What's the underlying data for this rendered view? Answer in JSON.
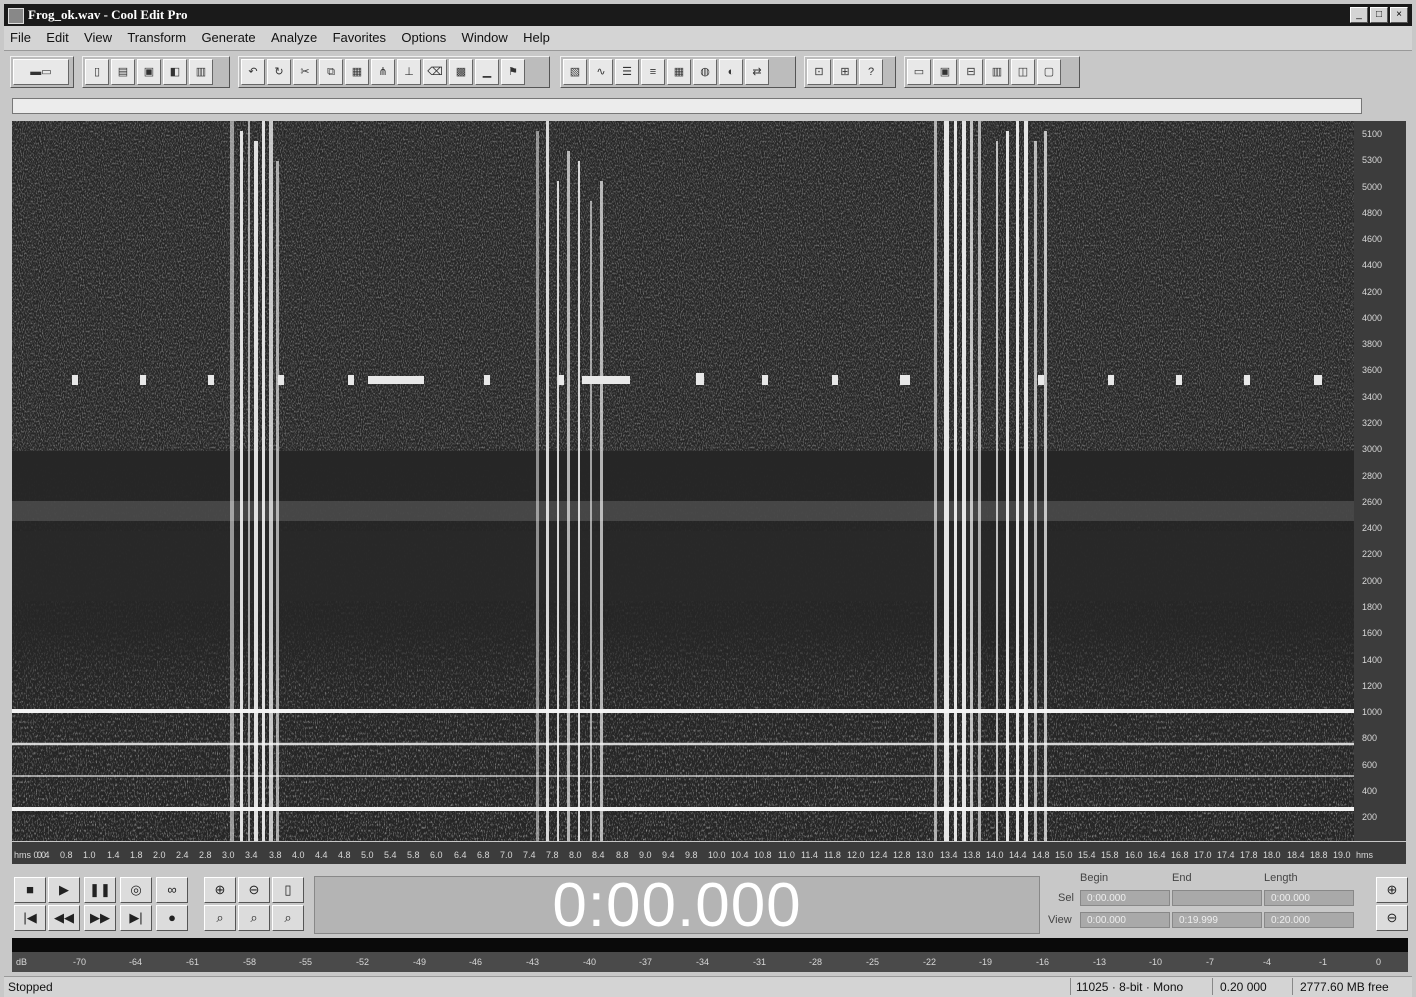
{
  "title": "Frog_ok.wav - Cool Edit Pro",
  "menu": [
    "File",
    "Edit",
    "View",
    "Transform",
    "Generate",
    "Analyze",
    "Favorites",
    "Options",
    "Window",
    "Help"
  ],
  "freq_labels": [
    "5100",
    "5300",
    "5000",
    "4800",
    "4600",
    "4400",
    "4200",
    "4000",
    "3800",
    "3600",
    "3400",
    "3200",
    "3000",
    "2800",
    "2600",
    "2400",
    "2200",
    "2000",
    "1800",
    "1600",
    "1400",
    "1200",
    "1000",
    "800",
    "600",
    "400",
    "200"
  ],
  "time_labels": [
    "hms 0.0",
    "0.4",
    "0.8",
    "1.0",
    "1.4",
    "1.8",
    "2.0",
    "2.4",
    "2.8",
    "3.0",
    "3.4",
    "3.8",
    "4.0",
    "4.4",
    "4.8",
    "5.0",
    "5.4",
    "5.8",
    "6.0",
    "6.4",
    "6.8",
    "7.0",
    "7.4",
    "7.8",
    "8.0",
    "8.4",
    "8.8",
    "9.0",
    "9.4",
    "9.8",
    "10.0",
    "10.4",
    "10.8",
    "11.0",
    "11.4",
    "11.8",
    "12.0",
    "12.4",
    "12.8",
    "13.0",
    "13.4",
    "13.8",
    "14.0",
    "14.4",
    "14.8",
    "15.0",
    "15.4",
    "15.8",
    "16.0",
    "16.4",
    "16.8",
    "17.0",
    "17.4",
    "17.8",
    "18.0",
    "18.4",
    "18.8",
    "19.0",
    "hms"
  ],
  "clock": "0:00.000",
  "selection": {
    "begin_label": "Begin",
    "end_label": "End",
    "length_label": "Length",
    "sel_label": "Sel",
    "view_label": "View",
    "sel_begin": "0:00.000",
    "sel_end": "",
    "sel_length": "0:00.000",
    "view_begin": "0:00.000",
    "view_end": "0:19.999",
    "view_length": "0:20.000"
  },
  "meter_labels": [
    "dB",
    "-70",
    "-64",
    "-61",
    "-58",
    "-55",
    "-52",
    "-49",
    "-46",
    "-43",
    "-40",
    "-37",
    "-34",
    "-31",
    "-28",
    "-25",
    "-22",
    "-19",
    "-16",
    "-13",
    "-10",
    "-7",
    "-4",
    "-1",
    "0"
  ],
  "status": {
    "state": "Stopped",
    "format": "11025 · 8-bit · Mono",
    "size": "0.20 000",
    "free": "2777.60 MB free"
  },
  "colors": {
    "title_bg": "#1a1a1a",
    "spectrogram_bg": "#262626",
    "clock_digits": "#ffffff"
  }
}
